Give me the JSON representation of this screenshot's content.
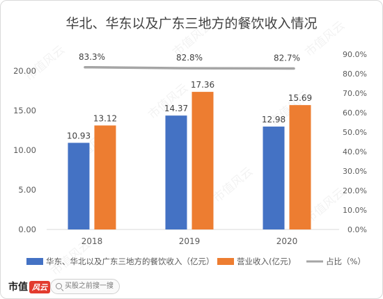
{
  "chart_data": {
    "type": "bar",
    "title": "华北、华东以及广东三地方的餐饮收入情况",
    "categories": [
      "2018",
      "2019",
      "2020"
    ],
    "series": [
      {
        "name": "华东、华北以及广东三地方的餐饮收入（亿元）",
        "type": "bar",
        "axis": "left",
        "color": "#4472c4",
        "values": [
          10.93,
          14.37,
          12.98
        ],
        "labels": [
          "10.93",
          "14.37",
          "12.98"
        ]
      },
      {
        "name": "营业收入(亿元)",
        "type": "bar",
        "axis": "left",
        "color": "#ed7d31",
        "values": [
          13.12,
          17.36,
          15.69
        ],
        "labels": [
          "13.12",
          "17.36",
          "15.69"
        ]
      },
      {
        "name": "占比（%）",
        "type": "line",
        "axis": "right",
        "color": "#a5a5a5",
        "values": [
          83.3,
          82.8,
          82.7
        ],
        "labels": [
          "83.3%",
          "82.8%",
          "82.7%"
        ]
      }
    ],
    "left_axis": {
      "ylim": [
        0,
        20
      ],
      "ticks": [
        "0.00",
        "5.00",
        "10.00",
        "15.00",
        "20.00"
      ]
    },
    "right_axis": {
      "ylim": [
        0,
        90
      ],
      "ticks": [
        "0.0%",
        "10.0%",
        "20.0%",
        "30.0%",
        "40.0%",
        "50.0%",
        "60.0%",
        "70.0%",
        "80.0%",
        "90.0%"
      ]
    },
    "grid": false,
    "legend_position": "bottom"
  },
  "watermark": "市值风云",
  "footer": {
    "brand": "市值",
    "brand_mark": "风云",
    "search_placeholder": "买股之前搜一搜"
  }
}
